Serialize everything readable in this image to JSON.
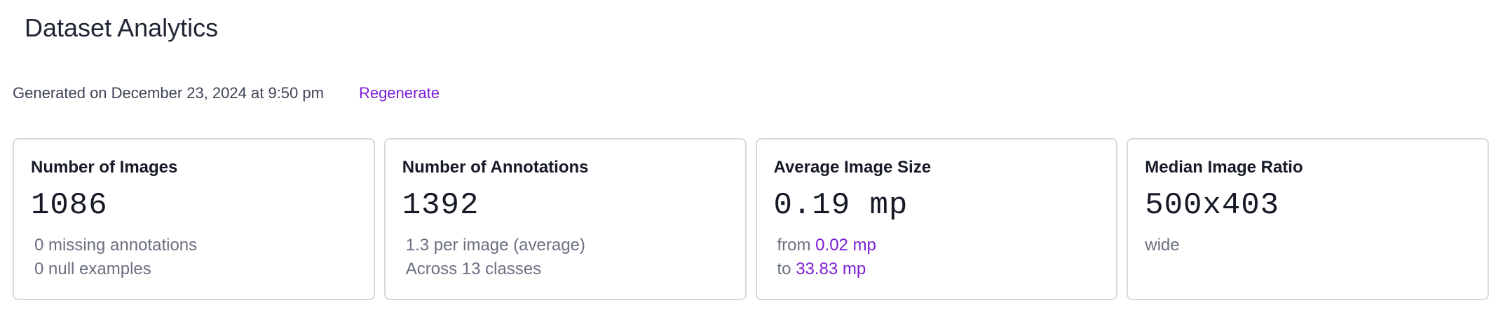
{
  "header": {
    "title": "Dataset Analytics"
  },
  "meta": {
    "generated_text": "Generated on December 23, 2024 at 9:50 pm",
    "regenerate_label": "Regenerate"
  },
  "colors": {
    "accent": "#7b1ed6",
    "text_primary": "#161a26",
    "text_muted": "#6b6f80",
    "card_border": "#d8d9dd"
  },
  "cards": [
    {
      "title": "Number of Images",
      "value": "1086",
      "details": [
        "0 missing annotations",
        "0 null examples"
      ]
    },
    {
      "title": "Number of Annotations",
      "value": "1392",
      "details": [
        "1.3 per image (average)",
        "Across 13 classes"
      ]
    },
    {
      "title": "Average Image Size",
      "value": "0.19 mp",
      "from_prefix": "from ",
      "from_value": "0.02 mp",
      "to_prefix": "to ",
      "to_value": "33.83 mp"
    },
    {
      "title": "Median Image Ratio",
      "value": "500x403",
      "details": [
        "wide"
      ]
    }
  ]
}
